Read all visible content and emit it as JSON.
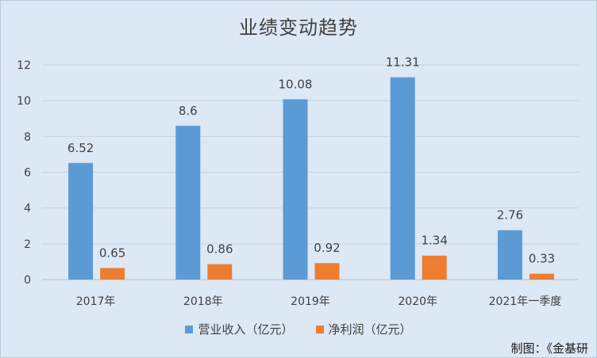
{
  "chart_data": {
    "type": "bar",
    "title": "业绩变动趋势",
    "categories": [
      "2017年",
      "2018年",
      "2019年",
      "2020年",
      "2021年一季度"
    ],
    "series": [
      {
        "name": "营业收入（亿元）",
        "color": "#5b9bd5",
        "values": [
          6.52,
          8.6,
          10.08,
          11.31,
          2.76
        ],
        "labels": [
          "6.52",
          "8.6",
          "10.08",
          "11.31",
          "2.76"
        ]
      },
      {
        "name": "净利润（亿元）",
        "color": "#ed7d31",
        "values": [
          0.65,
          0.86,
          0.92,
          1.34,
          0.33
        ],
        "labels": [
          "0.65",
          "0.86",
          "0.92",
          "1.34",
          "0.33"
        ]
      }
    ],
    "ylim": [
      0,
      12
    ],
    "yticks": [
      0,
      2,
      4,
      6,
      8,
      10,
      12
    ],
    "ytick_labels": [
      "0",
      "2",
      "4",
      "6",
      "8",
      "10",
      "12"
    ],
    "grid": true,
    "legend_position": "bottom"
  },
  "credit": "制图：《金基研"
}
